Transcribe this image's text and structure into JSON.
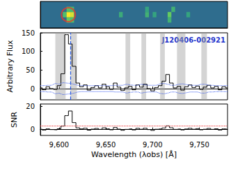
{
  "chart_data": [
    {
      "type": "heatmap",
      "xlim": [
        9580,
        9780
      ],
      "ylim": [
        0,
        5
      ],
      "tick_labels": false,
      "cell_width": 4,
      "cells": [
        [
          9604,
          2,
          0.5
        ],
        [
          9608,
          2,
          1
        ],
        [
          9612,
          2,
          0.9
        ],
        [
          9608,
          1,
          0.6
        ],
        [
          9612,
          1,
          0.5
        ],
        [
          9608,
          3,
          0.5
        ],
        [
          9612,
          3,
          0.45
        ],
        [
          9664,
          2,
          0.35
        ],
        [
          9692,
          2,
          0.4
        ],
        [
          9692,
          3,
          0.3
        ],
        [
          9700,
          2,
          0.3
        ],
        [
          9716,
          2,
          0.6
        ],
        [
          9716,
          1,
          0.4
        ],
        [
          9720,
          3,
          0.4
        ],
        [
          9736,
          2,
          0.3
        ]
      ],
      "highlight": [
        9610,
        2.5
      ],
      "color": "#e8382b"
    },
    {
      "type": "line",
      "ylabel": "Arbitrary Flux",
      "annotation": "J120406-002921",
      "xlim": [
        9580,
        9780
      ],
      "xticks": [
        9600,
        9650,
        9700,
        9750
      ],
      "ylim": [
        -30,
        150
      ],
      "yticks": [
        0,
        50,
        100,
        150
      ],
      "tick_labels": "y",
      "x": [
        9580,
        9584,
        9588,
        9592,
        9596,
        9600,
        9604,
        9608,
        9612,
        9616,
        9620,
        9624,
        9628,
        9632,
        9636,
        9640,
        9644,
        9648,
        9652,
        9656,
        9660,
        9664,
        9668,
        9672,
        9676,
        9680,
        9684,
        9688,
        9692,
        9696,
        9700,
        9704,
        9708,
        9712,
        9716,
        9720,
        9724,
        9728,
        9732,
        9736,
        9740,
        9744,
        9748,
        9752,
        9756,
        9760,
        9764,
        9768,
        9772,
        9776,
        9780
      ],
      "series": [
        {
          "type": "step",
          "color": "#000000",
          "line_style": "solid",
          "values": [
            2,
            -3,
            5,
            0,
            -2,
            8,
            40,
            145,
            120,
            60,
            15,
            5,
            10,
            -4,
            3,
            8,
            2,
            12,
            5,
            -2,
            15,
            4,
            -5,
            2,
            6,
            -3,
            10,
            4,
            12,
            0,
            -6,
            3,
            8,
            20,
            38,
            15,
            2,
            6,
            -4,
            5,
            10,
            3,
            7,
            -2,
            4,
            9,
            2,
            6,
            -3,
            5,
            2
          ]
        },
        {
          "type": "line",
          "color": "#3355ee",
          "line_style": "dotted",
          "values": [
            8,
            8,
            9,
            9,
            14,
            12,
            16,
            15,
            14,
            12,
            9,
            8,
            8,
            8,
            8,
            8,
            8,
            8,
            8,
            8,
            9,
            9,
            9,
            12,
            10,
            9,
            9,
            12,
            10,
            9,
            9,
            9,
            13,
            14,
            12,
            9,
            9,
            12,
            13,
            11,
            9,
            9,
            9,
            12,
            12,
            9,
            9,
            8,
            8,
            8,
            8
          ]
        },
        {
          "type": "line",
          "color": "#3355ee",
          "line_style": "dotted",
          "values": [
            -8,
            -8,
            -9,
            -9,
            -14,
            -12,
            -16,
            -15,
            -14,
            -12,
            -9,
            -8,
            -8,
            -8,
            -8,
            -8,
            -8,
            -8,
            -8,
            -8,
            -9,
            -9,
            -9,
            -12,
            -10,
            -9,
            -9,
            -12,
            -10,
            -9,
            -9,
            -9,
            -13,
            -14,
            -12,
            -9,
            -9,
            -12,
            -13,
            -11,
            -9,
            -9,
            -9,
            -12,
            -12,
            -9,
            -9,
            -8,
            -8,
            -8,
            -8
          ]
        }
      ],
      "shaded_regions": [
        [
          9596,
          9607
        ],
        [
          9612,
          9619
        ],
        [
          9671,
          9676
        ],
        [
          9688,
          9693
        ],
        [
          9708,
          9713
        ],
        [
          9726,
          9735
        ],
        [
          9752,
          9758
        ]
      ],
      "line_marker": {
        "value": 9612,
        "color": "#2255dd",
        "line_style": "dashed"
      }
    },
    {
      "type": "line",
      "ylabel": "SNR",
      "xlabel": "Wavelength (λobs) [Å]",
      "xlim": [
        9580,
        9780
      ],
      "xticks": [
        9600,
        9650,
        9700,
        9750
      ],
      "ylim": [
        -5,
        22
      ],
      "yticks": [
        0,
        20
      ],
      "x": [
        9580,
        9584,
        9588,
        9592,
        9596,
        9600,
        9604,
        9608,
        9612,
        9616,
        9620,
        9624,
        9628,
        9632,
        9636,
        9640,
        9644,
        9648,
        9652,
        9656,
        9660,
        9664,
        9668,
        9672,
        9676,
        9680,
        9684,
        9688,
        9692,
        9696,
        9700,
        9704,
        9708,
        9712,
        9716,
        9720,
        9724,
        9728,
        9732,
        9736,
        9740,
        9744,
        9748,
        9752,
        9756,
        9760,
        9764,
        9768,
        9772,
        9776,
        9780
      ],
      "series": [
        {
          "type": "step",
          "color": "#000000",
          "line_style": "solid",
          "values": [
            0.3,
            -0.4,
            0.6,
            0,
            -0.2,
            0.7,
            3,
            12,
            16,
            6,
            1.5,
            0.6,
            1.2,
            -0.5,
            0.4,
            1,
            0.2,
            1.5,
            0.6,
            -0.2,
            1.8,
            0.4,
            -0.6,
            0.2,
            0.6,
            -0.3,
            1.1,
            0.3,
            1.2,
            0,
            -0.7,
            0.3,
            0.6,
            1.4,
            3.2,
            1.6,
            0.2,
            0.5,
            -0.3,
            0.5,
            1.1,
            0.3,
            0.8,
            -0.2,
            0.3,
            1,
            0.2,
            0.7,
            -0.4,
            0.6,
            0.2
          ]
        }
      ],
      "reference_lines": [
        {
          "value": 3,
          "color": "#ee2222",
          "line_style": "dotted"
        },
        {
          "value": 0,
          "color": "#000000",
          "line_style": "dotted"
        }
      ]
    }
  ]
}
